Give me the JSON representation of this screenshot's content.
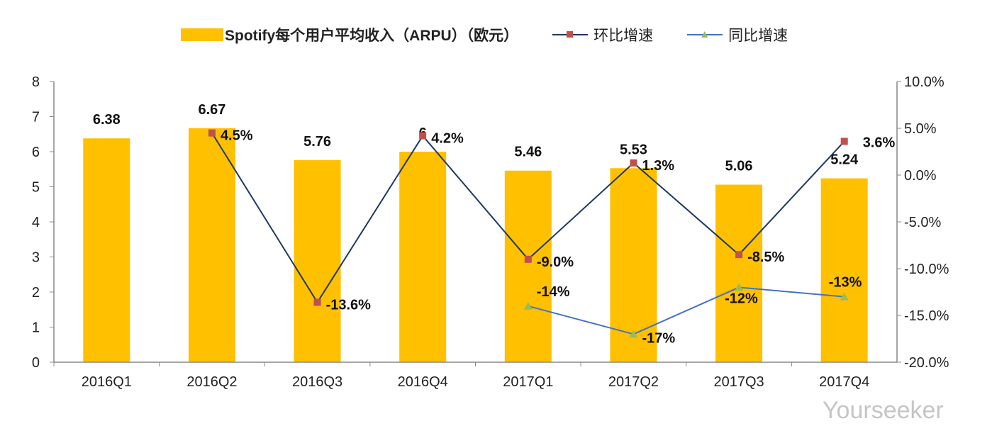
{
  "chart_data": {
    "type": "bar+line",
    "categories": [
      "2016Q1",
      "2016Q2",
      "2016Q3",
      "2016Q4",
      "2017Q1",
      "2017Q2",
      "2017Q3",
      "2017Q4"
    ],
    "series": [
      {
        "name": "Spotify每个用户平均收入（ARPU）（欧元）",
        "type": "bar",
        "axis": "left",
        "color": "#FFC000",
        "values": [
          6.38,
          6.67,
          5.76,
          6,
          5.46,
          5.53,
          5.06,
          5.24
        ],
        "labels": [
          "6.38",
          "6.67",
          "5.76",
          "6",
          "5.46",
          "5.53",
          "5.06",
          "5.24"
        ]
      },
      {
        "name": "环比增速",
        "type": "line",
        "axis": "right",
        "color": "#1F3864",
        "marker_color": "#C0504D",
        "marker": "square",
        "values": [
          null,
          4.5,
          -13.6,
          4.2,
          -9.0,
          1.3,
          -8.5,
          3.6
        ],
        "labels": [
          null,
          "4.5%",
          "-13.6%",
          "4.2%",
          "-9.0%",
          "1.3%",
          "-8.5%",
          "3.6%"
        ]
      },
      {
        "name": "同比增速",
        "type": "line",
        "axis": "right",
        "color": "#4472C4",
        "marker_color": "#9BBB59",
        "marker": "triangle",
        "values": [
          null,
          null,
          null,
          null,
          -14,
          -17,
          -12,
          -13
        ],
        "labels": [
          null,
          null,
          null,
          null,
          "-14%",
          "-17%",
          "-12%",
          "-13%"
        ]
      }
    ],
    "ylim": [
      0,
      8
    ],
    "yticks": [
      "0",
      "1",
      "2",
      "3",
      "4",
      "5",
      "6",
      "7",
      "8"
    ],
    "y2lim": [
      -20,
      10
    ],
    "y2ticks": [
      "-20.0%",
      "-15.0%",
      "-10.0%",
      "-5.0%",
      "0.0%",
      "5.0%",
      "10.0%"
    ],
    "grid": false,
    "legend": "top"
  },
  "watermark": "Yourseeker"
}
